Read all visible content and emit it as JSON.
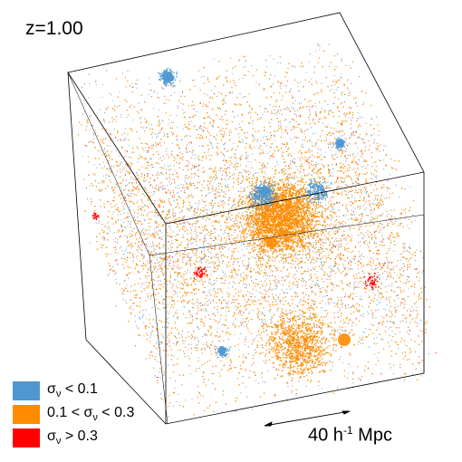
{
  "redshift_label": "z=1.00",
  "legend": [
    {
      "pre": "σ",
      "sub": "ν",
      "post": " < 0.1",
      "color": "#4e97d1"
    },
    {
      "pre": "0.1 < σ",
      "sub": "ν",
      "post": " < 0.3",
      "color": "#ff8c00"
    },
    {
      "pre": "σ",
      "sub": "ν",
      "post": " > 0.3",
      "color": "#ff0000"
    }
  ],
  "scale_bar": {
    "value": "40 h",
    "exponent": "-1",
    "unit": " Mpc"
  },
  "colors": {
    "blue": "#4e97d1",
    "orange": "#ff8c00",
    "red": "#ff0000",
    "edge": "#000000"
  }
}
